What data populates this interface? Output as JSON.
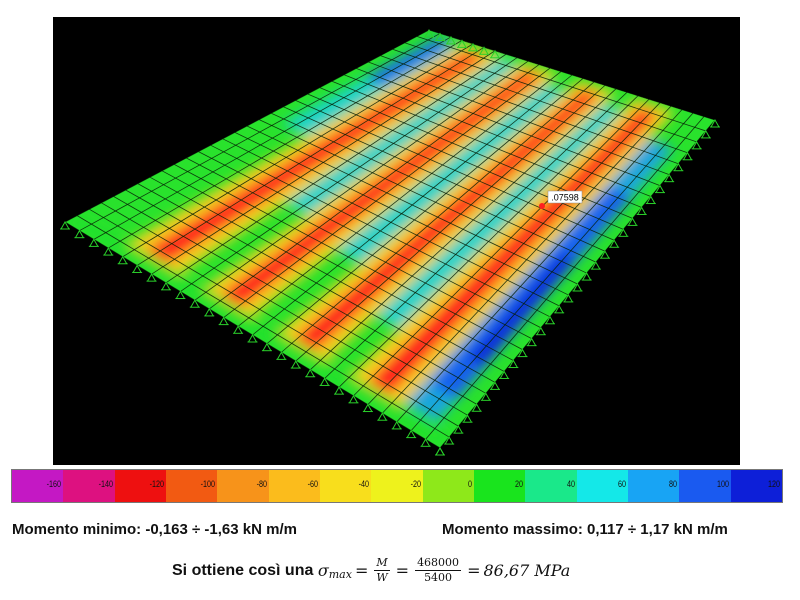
{
  "viewport": {
    "background": "#000000",
    "mesh_color": "#0a2a0a",
    "support_color": "#22bb22",
    "annotation": ".07598"
  },
  "colorbar": {
    "stops": [
      {
        "label": "-160",
        "color": "#c418c4"
      },
      {
        "label": "-140",
        "color": "#dd1180"
      },
      {
        "label": "-120",
        "color": "#ee1010"
      },
      {
        "label": "-100",
        "color": "#f25a12"
      },
      {
        "label": "-80",
        "color": "#f7931a"
      },
      {
        "label": "-60",
        "color": "#fbbc1c"
      },
      {
        "label": "-40",
        "color": "#f8de1c"
      },
      {
        "label": "-20",
        "color": "#eef21c"
      },
      {
        "label": "0",
        "color": "#8ee81a"
      },
      {
        "label": "20",
        "color": "#19e41d"
      },
      {
        "label": "40",
        "color": "#1ae88a"
      },
      {
        "label": "60",
        "color": "#14e8e8"
      },
      {
        "label": "80",
        "color": "#18a4f4"
      },
      {
        "label": "100",
        "color": "#1a5af0"
      },
      {
        "label": "120",
        "color": "#0d1fd8"
      }
    ]
  },
  "results": {
    "min_label": "Momento minimo:",
    "min_value": "-0,163 ÷ -1,63 kN m/m",
    "max_label": "Momento massimo:",
    "max_value": "0,117 ÷ 1,17 kN m/m"
  },
  "formula": {
    "lead": "Si ottiene così una",
    "sigma": "σ",
    "sub": "max",
    "eq1": "=",
    "num1": "M",
    "den1": "W",
    "eq2": "=",
    "num2": "468000",
    "den2": "5400",
    "eq3": "=",
    "result": "86,67 MPa"
  }
}
